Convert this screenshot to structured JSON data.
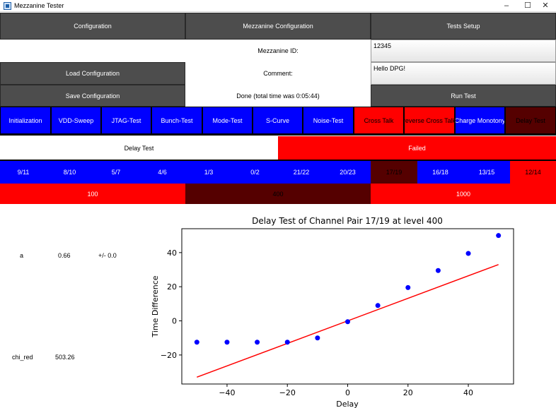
{
  "window": {
    "title": "Mezzanine Tester",
    "minimize": "–",
    "maximize": "☐",
    "close": "✕",
    "icon": "app-window-icon"
  },
  "top_buttons": {
    "configuration": "Configuration",
    "mezzanine_configuration": "Mezzanine Configuration",
    "tests_setup": "Tests Setup"
  },
  "form": {
    "mezzanine_id_label": "Mezzanine ID:",
    "mezzanine_id_value": "12345",
    "comment_label": "Comment:",
    "comment_value": "Hello DPG!",
    "load_configuration": "Load Configuration",
    "save_configuration": "Save Configuration",
    "status": "Done (total time was 0:05:44)",
    "run_test": "Run Test"
  },
  "test_tabs": [
    {
      "label": "Initialization",
      "state": "blue"
    },
    {
      "label": "VDD-Sweep",
      "state": "blue"
    },
    {
      "label": "JTAG-Test",
      "state": "blue"
    },
    {
      "label": "Bunch-Test",
      "state": "blue"
    },
    {
      "label": "Mode-Test",
      "state": "blue"
    },
    {
      "label": "S-Curve",
      "state": "blue"
    },
    {
      "label": "Noise-Test",
      "state": "blue"
    },
    {
      "label": "Cross Talk",
      "state": "red"
    },
    {
      "label": "reverse Cross Talk",
      "state": "red"
    },
    {
      "label": "Charge Monotony",
      "state": "blue"
    },
    {
      "label": "Delay Test",
      "state": "dark"
    }
  ],
  "result": {
    "test_name": "Delay Test",
    "status": "Failed"
  },
  "pairs": [
    {
      "label": "9/11",
      "state": "blue"
    },
    {
      "label": "8/10",
      "state": "blue"
    },
    {
      "label": "5/7",
      "state": "blue"
    },
    {
      "label": "4/6",
      "state": "blue"
    },
    {
      "label": "1/3",
      "state": "blue"
    },
    {
      "label": "0/2",
      "state": "blue"
    },
    {
      "label": "21/22",
      "state": "blue"
    },
    {
      "label": "20/23",
      "state": "blue"
    },
    {
      "label": "17/19",
      "state": "dark"
    },
    {
      "label": "16/18",
      "state": "blue"
    },
    {
      "label": "13/15",
      "state": "blue"
    },
    {
      "label": "12/14",
      "state": "red"
    }
  ],
  "levels": [
    {
      "label": "100",
      "state": "red"
    },
    {
      "label": "400",
      "state": "dark"
    },
    {
      "label": "1000",
      "state": "red"
    }
  ],
  "fit": {
    "param_name": "a",
    "param_value": "0.66",
    "param_error": "+/- 0.0",
    "chi_label": "chi_red",
    "chi_value": "503.26"
  },
  "chart_data": {
    "type": "scatter",
    "title": "Delay Test of Channel Pair 17/19 at level 400",
    "xlabel": "Delay",
    "ylabel": "Time Difference",
    "xlim": [
      -55,
      55
    ],
    "ylim": [
      -37,
      54
    ],
    "xticks": [
      -40,
      -20,
      0,
      20,
      40
    ],
    "yticks": [
      -20,
      0,
      20,
      40
    ],
    "grid": false,
    "points": {
      "color": "#0000ff",
      "x": [
        -50,
        -40,
        -30,
        -20,
        -10,
        0,
        10,
        20,
        30,
        40,
        50
      ],
      "y": [
        -12.5,
        -12.5,
        -12.5,
        -12.5,
        -10,
        -0.5,
        9,
        19.5,
        29.5,
        39.5,
        50
      ]
    },
    "fit_line": {
      "color": "#ff0000",
      "x": [
        -50,
        50
      ],
      "y": [
        -33,
        33
      ]
    }
  }
}
